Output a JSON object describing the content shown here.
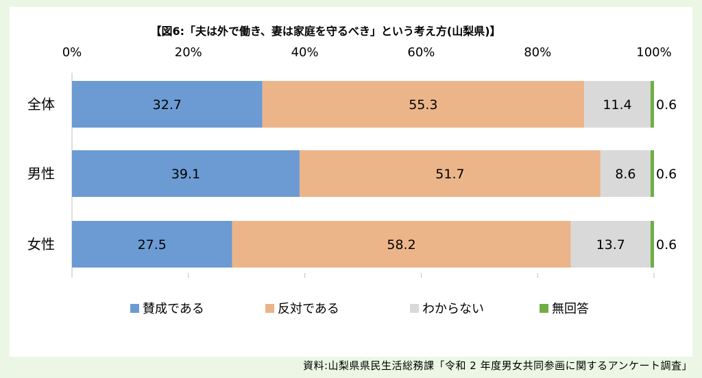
{
  "colors": {
    "background": "#ebf7e4",
    "panel": "#ffffff",
    "agree": "#6b9bd2",
    "disagree": "#ecb589",
    "dont_know": "#d9d9d9",
    "no_answer": "#70ad47",
    "axis": "#bfbfbf"
  },
  "chart_data": {
    "type": "bar",
    "orientation": "horizontal",
    "stacked": true,
    "title": "【図6:「夫は外で働き、妻は家庭を守るべき」という考え方(山梨県)】",
    "categories": [
      "全体",
      "男性",
      "女性"
    ],
    "series": [
      {
        "name": "賛成である",
        "values": [
          32.7,
          39.1,
          27.5
        ],
        "color": "#6b9bd2"
      },
      {
        "name": "反対である",
        "values": [
          55.3,
          51.7,
          58.2
        ],
        "color": "#ecb589"
      },
      {
        "name": "わからない",
        "values": [
          11.4,
          8.6,
          13.7
        ],
        "color": "#d9d9d9"
      },
      {
        "name": "無回答",
        "values": [
          0.6,
          0.6,
          0.6
        ],
        "color": "#70ad47"
      }
    ],
    "xlim": [
      0,
      100
    ],
    "x_ticks": [
      "0%",
      "20%",
      "40%",
      "60%",
      "80%",
      "100%"
    ],
    "x_tick_values": [
      0,
      20,
      40,
      60,
      80,
      100
    ],
    "x_axis_position": "top",
    "gridlines": false,
    "legend_position": "bottom"
  },
  "source": "資料:山梨県県民生活総務課「令和 2 年度男女共同参画に関するアンケート調査」"
}
